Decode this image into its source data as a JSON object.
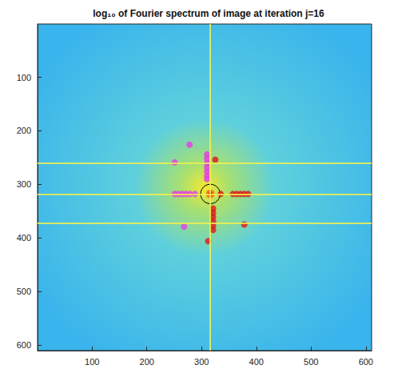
{
  "chart_data": {
    "type": "scatter",
    "title": "log₁₀ of Fourier spectrum of image at iteration j=16",
    "xlim": [
      0.5,
      610.5
    ],
    "ylim": [
      0.5,
      610.5
    ],
    "xticks": [
      100,
      200,
      300,
      400,
      500,
      600
    ],
    "yticks": [
      100,
      200,
      300,
      400,
      500,
      600
    ],
    "series": [
      {
        "color": "#e63ce6",
        "marker": "circle",
        "x": [
          278,
          251,
          310,
          310,
          310,
          310,
          310,
          310,
          310,
          251,
          258,
          265,
          272,
          279,
          288,
          268
        ],
        "y": [
          226,
          259,
          244,
          252,
          260,
          268,
          276,
          284,
          290,
          318,
          318,
          318,
          318,
          318,
          318,
          379
        ]
      },
      {
        "color": "#e01818",
        "marker": "circle",
        "x": [
          325,
          335,
          357,
          364,
          371,
          378,
          385,
          321,
          321,
          321,
          321,
          321,
          321,
          378,
          312
        ],
        "y": [
          254,
          318,
          318,
          318,
          318,
          318,
          318,
          345,
          353,
          361,
          369,
          377,
          385,
          375,
          406
        ]
      }
    ],
    "circle": {
      "center": [
        316,
        318
      ],
      "radius": 18,
      "color": "#000000"
    },
    "bright_lines": {
      "x": [
        316
      ],
      "y": [
        260,
        318,
        372
      ],
      "color": "#f0f050"
    }
  }
}
